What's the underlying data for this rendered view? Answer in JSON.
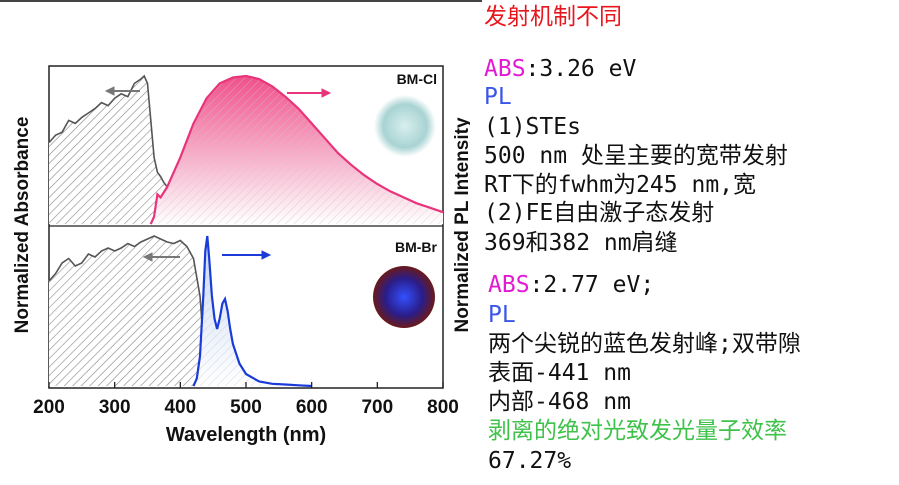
{
  "figure": {
    "y_label_left": "Normalized Absorbance",
    "y_label_right": "Normalized PL Intensity",
    "x_label": "Wavelength (nm)",
    "x_ticks": [
      "200",
      "300",
      "400",
      "500",
      "600",
      "700",
      "800"
    ],
    "panel_top_label": "BM-Cl",
    "panel_bottom_label": "BM-Br",
    "colors": {
      "abs": "#555555",
      "pl_cl": "#e8347a",
      "pl_br": "#1a3bd8",
      "hatch": "#8a8a8a"
    }
  },
  "chart_data": [
    {
      "type": "line",
      "panel": "BM-Cl",
      "xlim": [
        200,
        800
      ],
      "series": [
        {
          "name": "ABS",
          "x": [
            200,
            210,
            220,
            230,
            240,
            250,
            260,
            270,
            280,
            290,
            300,
            310,
            320,
            330,
            340,
            345,
            350,
            355,
            360,
            365,
            370,
            375,
            380,
            390
          ],
          "y": [
            0.55,
            0.6,
            0.62,
            0.7,
            0.68,
            0.72,
            0.75,
            0.78,
            0.82,
            0.8,
            0.85,
            0.88,
            0.86,
            0.95,
            0.98,
            1.0,
            0.95,
            0.7,
            0.45,
            0.35,
            0.32,
            0.28,
            0.25,
            0.22
          ]
        },
        {
          "name": "PL",
          "x": [
            355,
            360,
            365,
            370,
            380,
            400,
            420,
            440,
            460,
            480,
            500,
            520,
            540,
            560,
            580,
            600,
            620,
            640,
            660,
            680,
            700,
            720,
            740,
            760,
            780,
            800
          ],
          "y": [
            0,
            0.05,
            0.2,
            0.18,
            0.25,
            0.45,
            0.68,
            0.85,
            0.95,
            0.99,
            1.0,
            0.98,
            0.93,
            0.86,
            0.78,
            0.68,
            0.58,
            0.48,
            0.4,
            0.33,
            0.27,
            0.22,
            0.18,
            0.14,
            0.11,
            0.08
          ]
        }
      ]
    },
    {
      "type": "line",
      "panel": "BM-Br",
      "xlim": [
        200,
        800
      ],
      "series": [
        {
          "name": "ABS",
          "x": [
            200,
            210,
            220,
            230,
            240,
            250,
            260,
            270,
            280,
            290,
            300,
            310,
            320,
            330,
            340,
            350,
            360,
            370,
            380,
            390,
            400,
            410,
            420,
            430,
            435,
            440
          ],
          "y": [
            0.7,
            0.75,
            0.82,
            0.85,
            0.8,
            0.82,
            0.88,
            0.86,
            0.9,
            0.92,
            0.9,
            0.92,
            0.95,
            0.93,
            0.96,
            0.98,
            1.0,
            0.98,
            0.96,
            0.95,
            0.97,
            0.93,
            0.85,
            0.6,
            0.3,
            0.1
          ]
        },
        {
          "name": "PL",
          "x": [
            420,
            425,
            430,
            435,
            438,
            441,
            444,
            448,
            452,
            456,
            460,
            464,
            468,
            472,
            476,
            480,
            490,
            500,
            520,
            540,
            560,
            580,
            600
          ],
          "y": [
            0,
            0.05,
            0.2,
            0.6,
            0.9,
            1.0,
            0.85,
            0.6,
            0.45,
            0.38,
            0.45,
            0.55,
            0.58,
            0.5,
            0.38,
            0.28,
            0.15,
            0.08,
            0.03,
            0.015,
            0.01,
            0.005,
            0
          ]
        }
      ]
    }
  ],
  "notes": [
    {
      "segments": [
        {
          "t": "发射机制不同",
          "c": "red"
        }
      ]
    },
    {
      "segments": [
        {
          "t": "ABS",
          "c": "mag"
        },
        {
          "t": ":3.26 eV",
          "c": ""
        }
      ]
    },
    {
      "segments": [
        {
          "t": "PL",
          "c": "blu"
        }
      ]
    },
    {
      "segments": [
        {
          "t": "(1)STEs",
          "c": ""
        }
      ]
    },
    {
      "segments": [
        {
          "t": "500 nm 处呈主要的宽带发射",
          "c": ""
        }
      ]
    },
    {
      "segments": [
        {
          "t": "RT下的fwhm为245 nm,宽",
          "c": ""
        }
      ]
    },
    {
      "segments": [
        {
          "t": "(2)FE自由激子态发射",
          "c": ""
        }
      ]
    },
    {
      "segments": [
        {
          "t": "369和382 nm肩缝",
          "c": ""
        }
      ]
    },
    {
      "segments": [
        {
          "t": "ABS",
          "c": "mag"
        },
        {
          "t": ":2.77 eV;",
          "c": ""
        }
      ]
    },
    {
      "segments": [
        {
          "t": "PL",
          "c": "blu"
        }
      ]
    },
    {
      "segments": [
        {
          "t": "两个尖锐的蓝色发射峰;双带隙",
          "c": ""
        }
      ]
    },
    {
      "segments": [
        {
          "t": "表面-441 nm",
          "c": ""
        }
      ]
    },
    {
      "segments": [
        {
          "t": "内部-468 nm",
          "c": ""
        }
      ]
    },
    {
      "segments": [
        {
          "t": "剥离的绝对光致发光量子效率",
          "c": "grn"
        }
      ]
    },
    {
      "segments": [
        {
          "t": "67.27%",
          "c": ""
        }
      ]
    }
  ]
}
